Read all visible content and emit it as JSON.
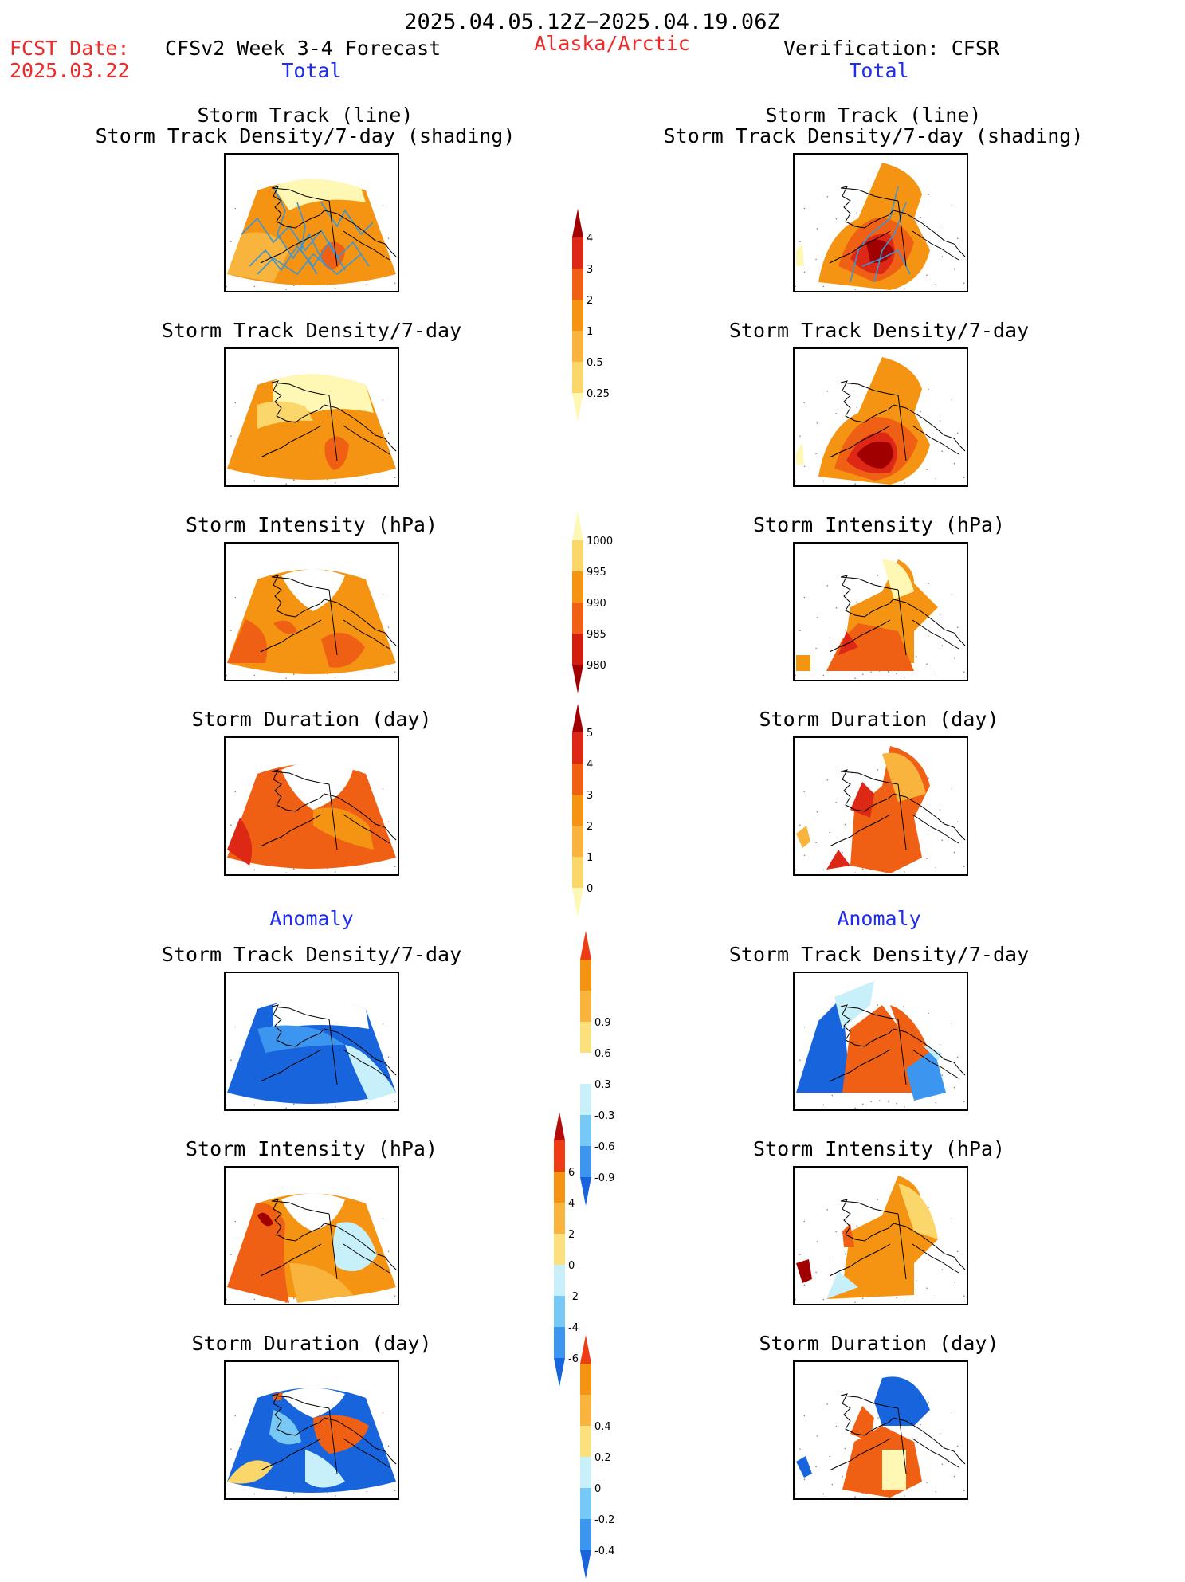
{
  "header": {
    "period": "2025.04.05.12Z−2025.04.19.06Z",
    "fcst_label": "FCST Date:",
    "fcst_date": "2025.03.22",
    "model": "CFSv2 Week 3-4 Forecast",
    "region": "Alaska/Arctic",
    "verification": "Verification: CFSR",
    "left_section": "Total",
    "right_section": "Total",
    "anomaly_left": "Anomaly",
    "anomaly_right": "Anomaly"
  },
  "panels": {
    "track": [
      "Storm Track (line)",
      "Storm Track Density/7-day (shading)"
    ],
    "density": "Storm Track Density/7-day",
    "intensity": "Storm Intensity (hPa)",
    "duration": "Storm Duration (day)"
  },
  "colorbars": [
    {
      "name": "density",
      "labels": [
        "0.25",
        "0.5",
        "1",
        "2",
        "3",
        "4"
      ],
      "colors": [
        "#fff7b4",
        "#fbd66a",
        "#f8b43c",
        "#f59313",
        "#f06014",
        "#dc2814",
        "#a00000"
      ]
    },
    {
      "name": "intensity",
      "labels": [
        "980",
        "985",
        "990",
        "995",
        "1000"
      ],
      "colors": [
        "#a00000",
        "#d21e10",
        "#f06014",
        "#f59313",
        "#fbd66a",
        "#fff7b4"
      ]
    },
    {
      "name": "duration",
      "labels": [
        "0",
        "1",
        "2",
        "3",
        "4",
        "5"
      ],
      "colors": [
        "#fff7b4",
        "#fbd66a",
        "#f8b43c",
        "#f59313",
        "#f06014",
        "#dc2814",
        "#a00000"
      ]
    },
    {
      "name": "density_anomaly",
      "labels": [
        "-0.9",
        "-0.6",
        "-0.3",
        "0.3",
        "0.6",
        "0.9"
      ],
      "colors": [
        "#1864dc",
        "#3c96ef",
        "#78c8f5",
        "#c8f0fa",
        "#ffffff",
        "#fbe07c",
        "#f8b43c",
        "#f59313",
        "#f03c14"
      ]
    },
    {
      "name": "intensity_anomaly",
      "labels": [
        "-6",
        "-4",
        "-2",
        "0",
        "2",
        "4",
        "6"
      ],
      "colors": [
        "#1864dc",
        "#3c96ef",
        "#78c8f5",
        "#c8f0fa",
        "#fbe07c",
        "#f8b43c",
        "#f59313",
        "#f03c14",
        "#b40a0a"
      ]
    },
    {
      "name": "duration_anomaly",
      "labels": [
        "-0.4",
        "-0.2",
        "0",
        "0.2",
        "0.4"
      ],
      "colors": [
        "#1864dc",
        "#3c96ef",
        "#78c8f5",
        "#c8f0fa",
        "#fbe07c",
        "#f8b43c",
        "#f59313",
        "#f03c14"
      ]
    }
  ],
  "palette": {
    "c_low": "#fff7b4",
    "c_yel": "#fbd66a",
    "c_lor": "#f8b43c",
    "c_or": "#f59313",
    "c_dor": "#f06014",
    "c_red": "#dc2814",
    "c_dred": "#a00000",
    "c_b1": "#c8f0fa",
    "c_b2": "#78c8f5",
    "c_b3": "#3c96ef",
    "c_b4": "#1864dc",
    "track_line": "#3c96d2",
    "text_red": "#f02828",
    "text_blue": "#1e2cf0"
  }
}
